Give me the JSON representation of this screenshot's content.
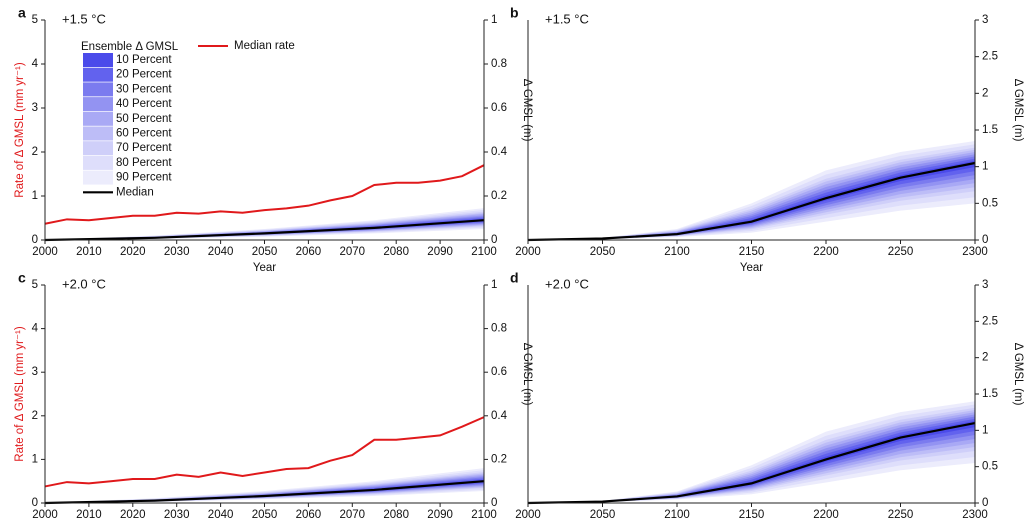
{
  "chart_data": [
    {
      "type": "line",
      "panel_label": "a",
      "annotation": "+1.5 °C",
      "xlabel": "Year",
      "ylabel": "Rate of Δ GMSL (mm yr⁻¹)",
      "y2label": "Δ GMSL (m)",
      "xlim": [
        2000,
        2100
      ],
      "xticks": [
        2000,
        2010,
        2020,
        2030,
        2040,
        2050,
        2060,
        2070,
        2080,
        2090,
        2100
      ],
      "ylim": [
        0,
        5
      ],
      "yticks": [
        0,
        1,
        2,
        3,
        4,
        5
      ],
      "y2lim": [
        0,
        1
      ],
      "y2ticks": [
        0,
        0.2,
        0.4,
        0.6,
        0.8,
        1
      ],
      "bands": {
        "title": "Ensemble Δ GMSL",
        "x": [
          2000,
          2025,
          2050,
          2075,
          2100
        ],
        "series": [
          {
            "name": "10 Percent",
            "color": "#4b4bea",
            "lower": [
              0,
              0.01,
              0.029,
              0.053,
              0.086
            ],
            "upper": [
              0,
              0.011,
              0.032,
              0.059,
              0.096
            ]
          },
          {
            "name": "20 Percent",
            "color": "#6262ee",
            "lower": [
              0,
              0.009,
              0.027,
              0.05,
              0.082
            ],
            "upper": [
              0,
              0.012,
              0.034,
              0.062,
              0.101
            ]
          },
          {
            "name": "30 Percent",
            "color": "#7b7bef",
            "lower": [
              0,
              0.009,
              0.026,
              0.048,
              0.078
            ],
            "upper": [
              0,
              0.013,
              0.036,
              0.066,
              0.107
            ]
          },
          {
            "name": "40 Percent",
            "color": "#9393f2",
            "lower": [
              0,
              0.008,
              0.024,
              0.045,
              0.074
            ],
            "upper": [
              0,
              0.014,
              0.038,
              0.069,
              0.112
            ]
          },
          {
            "name": "50 Percent",
            "color": "#a9a9f5",
            "lower": [
              0,
              0.008,
              0.023,
              0.043,
              0.07
            ],
            "upper": [
              0,
              0.015,
              0.04,
              0.073,
              0.118
            ]
          },
          {
            "name": "60 Percent",
            "color": "#bdbdf7",
            "lower": [
              0,
              0.007,
              0.021,
              0.04,
              0.066
            ],
            "upper": [
              0,
              0.016,
              0.042,
              0.076,
              0.123
            ]
          },
          {
            "name": "70 Percent",
            "color": "#cfcff9",
            "lower": [
              0,
              0.007,
              0.02,
              0.038,
              0.062
            ],
            "upper": [
              0,
              0.017,
              0.044,
              0.08,
              0.129
            ]
          },
          {
            "name": "80 Percent",
            "color": "#dedefb",
            "lower": [
              0,
              0.006,
              0.017,
              0.034,
              0.056
            ],
            "upper": [
              0,
              0.019,
              0.047,
              0.085,
              0.137
            ]
          },
          {
            "name": "90 Percent",
            "color": "#ececfc",
            "lower": [
              0,
              0.005,
              0.015,
              0.03,
              0.05
            ],
            "upper": [
              0,
              0.02,
              0.05,
              0.09,
              0.145
            ]
          }
        ]
      },
      "median": {
        "name": "Median",
        "color": "#000000",
        "axis": "y2",
        "x": [
          2000,
          2025,
          2050,
          2075,
          2100
        ],
        "values": [
          0,
          0.01,
          0.03,
          0.055,
          0.09
        ]
      },
      "rate": {
        "name": "Median rate",
        "color": "#e0191b",
        "x": [
          2000,
          2005,
          2010,
          2015,
          2020,
          2025,
          2030,
          2035,
          2040,
          2045,
          2050,
          2055,
          2060,
          2065,
          2070,
          2075,
          2080,
          2085,
          2090,
          2095,
          2100
        ],
        "values": [
          0.37,
          0.47,
          0.45,
          0.5,
          0.55,
          0.55,
          0.62,
          0.6,
          0.65,
          0.62,
          0.68,
          0.72,
          0.78,
          0.9,
          1.0,
          1.25,
          1.3,
          1.3,
          1.35,
          1.45,
          1.7
        ]
      }
    },
    {
      "type": "line",
      "panel_label": "b",
      "annotation": "+1.5 °C",
      "xlabel": "Year",
      "y2label": "Δ GMSL (m)",
      "xlim": [
        2000,
        2300
      ],
      "xticks": [
        2000,
        2050,
        2100,
        2150,
        2200,
        2250,
        2300
      ],
      "y2lim": [
        0,
        3
      ],
      "y2ticks": [
        0,
        0.5,
        1,
        1.5,
        2,
        2.5,
        3
      ],
      "bands": {
        "x": [
          2000,
          2050,
          2100,
          2150,
          2200,
          2250,
          2300
        ],
        "series": [
          {
            "color": "#4b4bea",
            "lower": [
              0,
              0.019,
              0.076,
              0.235,
              0.538,
              0.805,
              0.995
            ],
            "upper": [
              0,
              0.021,
              0.087,
              0.275,
              0.608,
              0.885,
              1.08
            ]
          },
          {
            "color": "#6262ee",
            "lower": [
              0,
              0.018,
              0.072,
              0.22,
              0.506,
              0.76,
              0.94
            ],
            "upper": [
              0,
              0.022,
              0.094,
              0.3,
              0.646,
              0.92,
              1.11
            ]
          },
          {
            "color": "#7b7bef",
            "lower": [
              0,
              0.017,
              0.068,
              0.205,
              0.474,
              0.715,
              0.885
            ],
            "upper": [
              0,
              0.023,
              0.101,
              0.325,
              0.684,
              0.955,
              1.14
            ]
          },
          {
            "color": "#9393f2",
            "lower": [
              0,
              0.016,
              0.064,
              0.19,
              0.442,
              0.67,
              0.83
            ],
            "upper": [
              0,
              0.024,
              0.108,
              0.35,
              0.722,
              0.99,
              1.17
            ]
          },
          {
            "color": "#a9a9f5",
            "lower": [
              0,
              0.015,
              0.06,
              0.175,
              0.41,
              0.625,
              0.775
            ],
            "upper": [
              0,
              0.025,
              0.115,
              0.375,
              0.76,
              1.025,
              1.2
            ]
          },
          {
            "color": "#bdbdf7",
            "lower": [
              0,
              0.014,
              0.056,
              0.16,
              0.378,
              0.58,
              0.72
            ],
            "upper": [
              0,
              0.026,
              0.122,
              0.4,
              0.798,
              1.06,
              1.23
            ]
          },
          {
            "color": "#cfcff9",
            "lower": [
              0,
              0.013,
              0.052,
              0.145,
              0.346,
              0.535,
              0.665
            ],
            "upper": [
              0,
              0.027,
              0.129,
              0.425,
              0.836,
              1.095,
              1.26
            ]
          },
          {
            "color": "#dedefb",
            "lower": [
              0,
              0.012,
              0.046,
              0.123,
              0.298,
              0.468,
              0.583
            ],
            "upper": [
              0,
              0.029,
              0.14,
              0.463,
              0.893,
              1.148,
              1.305
            ]
          },
          {
            "color": "#ececfc",
            "lower": [
              0,
              0.01,
              0.04,
              0.1,
              0.25,
              0.4,
              0.5
            ],
            "upper": [
              0,
              0.03,
              0.15,
              0.5,
              0.95,
              1.2,
              1.35
            ]
          }
        ]
      },
      "median": {
        "color": "#000000",
        "axis": "y2",
        "x": [
          2000,
          2050,
          2100,
          2150,
          2200,
          2250,
          2300
        ],
        "values": [
          0,
          0.02,
          0.08,
          0.25,
          0.57,
          0.85,
          1.05
        ]
      }
    },
    {
      "type": "line",
      "panel_label": "c",
      "annotation": "+2.0 °C",
      "ylabel": "Rate of Δ GMSL (mm yr⁻¹)",
      "y2label": "Δ GMSL (m)",
      "xlim": [
        2000,
        2100
      ],
      "xticks": [
        2000,
        2010,
        2020,
        2030,
        2040,
        2050,
        2060,
        2070,
        2080,
        2090,
        2100
      ],
      "ylim": [
        0,
        5
      ],
      "yticks": [
        0,
        1,
        2,
        3,
        4,
        5
      ],
      "y2lim": [
        0,
        1
      ],
      "y2ticks": [
        0,
        0.2,
        0.4,
        0.6,
        0.8,
        1
      ],
      "bands": {
        "x": [
          2000,
          2025,
          2050,
          2075,
          2100
        ],
        "series": [
          {
            "color": "#4b4bea",
            "lower": [
              0,
              0.01,
              0.03,
              0.057,
              0.095
            ],
            "upper": [
              0,
              0.012,
              0.034,
              0.064,
              0.106
            ]
          },
          {
            "color": "#6262ee",
            "lower": [
              0,
              0.01,
              0.029,
              0.054,
              0.09
            ],
            "upper": [
              0,
              0.013,
              0.036,
              0.068,
              0.112
            ]
          },
          {
            "color": "#7b7bef",
            "lower": [
              0,
              0.009,
              0.027,
              0.051,
              0.086
            ],
            "upper": [
              0,
              0.014,
              0.038,
              0.072,
              0.118
            ]
          },
          {
            "color": "#9393f2",
            "lower": [
              0,
              0.009,
              0.026,
              0.049,
              0.081
            ],
            "upper": [
              0,
              0.015,
              0.041,
              0.076,
              0.124
            ]
          },
          {
            "color": "#a9a9f5",
            "lower": [
              0,
              0.008,
              0.024,
              0.046,
              0.077
            ],
            "upper": [
              0,
              0.016,
              0.043,
              0.08,
              0.13
            ]
          },
          {
            "color": "#bdbdf7",
            "lower": [
              0,
              0.008,
              0.023,
              0.043,
              0.072
            ],
            "upper": [
              0,
              0.017,
              0.045,
              0.084,
              0.136
            ]
          },
          {
            "color": "#cfcff9",
            "lower": [
              0,
              0.007,
              0.021,
              0.04,
              0.068
            ],
            "upper": [
              0,
              0.018,
              0.048,
              0.088,
              0.142
            ]
          },
          {
            "color": "#dedefb",
            "lower": [
              0,
              0.006,
              0.019,
              0.036,
              0.061
            ],
            "upper": [
              0,
              0.02,
              0.051,
              0.094,
              0.151
            ]
          },
          {
            "color": "#ececfc",
            "lower": [
              0,
              0.005,
              0.017,
              0.032,
              0.055
            ],
            "upper": [
              0,
              0.022,
              0.055,
              0.1,
              0.16
            ]
          }
        ]
      },
      "median": {
        "color": "#000000",
        "axis": "y2",
        "x": [
          2000,
          2025,
          2050,
          2075,
          2100
        ],
        "values": [
          0,
          0.011,
          0.032,
          0.06,
          0.1
        ]
      },
      "rate": {
        "color": "#e0191b",
        "x": [
          2000,
          2005,
          2010,
          2015,
          2020,
          2025,
          2030,
          2035,
          2040,
          2045,
          2050,
          2055,
          2060,
          2065,
          2070,
          2075,
          2080,
          2085,
          2090,
          2095,
          2100
        ],
        "values": [
          0.38,
          0.48,
          0.45,
          0.5,
          0.55,
          0.55,
          0.65,
          0.6,
          0.7,
          0.62,
          0.7,
          0.78,
          0.8,
          0.97,
          1.1,
          1.45,
          1.45,
          1.5,
          1.55,
          1.75,
          1.97
        ]
      }
    },
    {
      "type": "line",
      "panel_label": "d",
      "annotation": "+2.0 °C",
      "y2label": "Δ GMSL (m)",
      "xlim": [
        2000,
        2300
      ],
      "xticks": [
        2000,
        2050,
        2100,
        2150,
        2200,
        2250,
        2300
      ],
      "y2lim": [
        0,
        3
      ],
      "y2ticks": [
        0,
        0.5,
        1,
        1.5,
        2,
        2.5,
        3
      ],
      "bands": {
        "x": [
          2000,
          2050,
          2100,
          2150,
          2200,
          2250,
          2300
        ],
        "series": [
          {
            "color": "#4b4bea",
            "lower": [
              0,
              0.019,
              0.085,
              0.255,
              0.57,
              0.855,
              1.045
            ],
            "upper": [
              0,
              0.021,
              0.096,
              0.295,
              0.64,
              0.935,
              1.13
            ]
          },
          {
            "color": "#6262ee",
            "lower": [
              0,
              0.018,
              0.081,
              0.24,
              0.538,
              0.81,
              0.99
            ],
            "upper": [
              0,
              0.022,
              0.103,
              0.32,
              0.678,
              0.97,
              1.16
            ]
          },
          {
            "color": "#7b7bef",
            "lower": [
              0,
              0.017,
              0.077,
              0.225,
              0.506,
              0.765,
              0.935
            ],
            "upper": [
              0,
              0.023,
              0.11,
              0.345,
              0.716,
              1.005,
              1.19
            ]
          },
          {
            "color": "#9393f2",
            "lower": [
              0,
              0.016,
              0.073,
              0.21,
              0.474,
              0.72,
              0.88
            ],
            "upper": [
              0,
              0.024,
              0.117,
              0.37,
              0.754,
              1.04,
              1.22
            ]
          },
          {
            "color": "#a9a9f5",
            "lower": [
              0,
              0.015,
              0.069,
              0.195,
              0.442,
              0.675,
              0.825
            ],
            "upper": [
              0,
              0.025,
              0.124,
              0.395,
              0.792,
              1.075,
              1.25
            ]
          },
          {
            "color": "#bdbdf7",
            "lower": [
              0,
              0.014,
              0.065,
              0.18,
              0.41,
              0.63,
              0.77
            ],
            "upper": [
              0,
              0.026,
              0.131,
              0.42,
              0.83,
              1.11,
              1.28
            ]
          },
          {
            "color": "#cfcff9",
            "lower": [
              0,
              0.013,
              0.061,
              0.165,
              0.378,
              0.585,
              0.715
            ],
            "upper": [
              0,
              0.027,
              0.138,
              0.445,
              0.868,
              1.145,
              1.31
            ]
          },
          {
            "color": "#dedefb",
            "lower": [
              0,
              0.012,
              0.055,
              0.143,
              0.33,
              0.518,
              0.633
            ],
            "upper": [
              0,
              0.029,
              0.149,
              0.483,
              0.925,
              1.198,
              1.355
            ]
          },
          {
            "color": "#ececfc",
            "lower": [
              0,
              0.01,
              0.049,
              0.12,
              0.282,
              0.45,
              0.55
            ],
            "upper": [
              0,
              0.03,
              0.159,
              0.52,
              0.982,
              1.25,
              1.4
            ]
          }
        ]
      },
      "median": {
        "color": "#000000",
        "axis": "y2",
        "x": [
          2000,
          2050,
          2100,
          2150,
          2200,
          2250,
          2300
        ],
        "values": [
          0,
          0.02,
          0.09,
          0.27,
          0.6,
          0.9,
          1.1
        ]
      }
    }
  ]
}
